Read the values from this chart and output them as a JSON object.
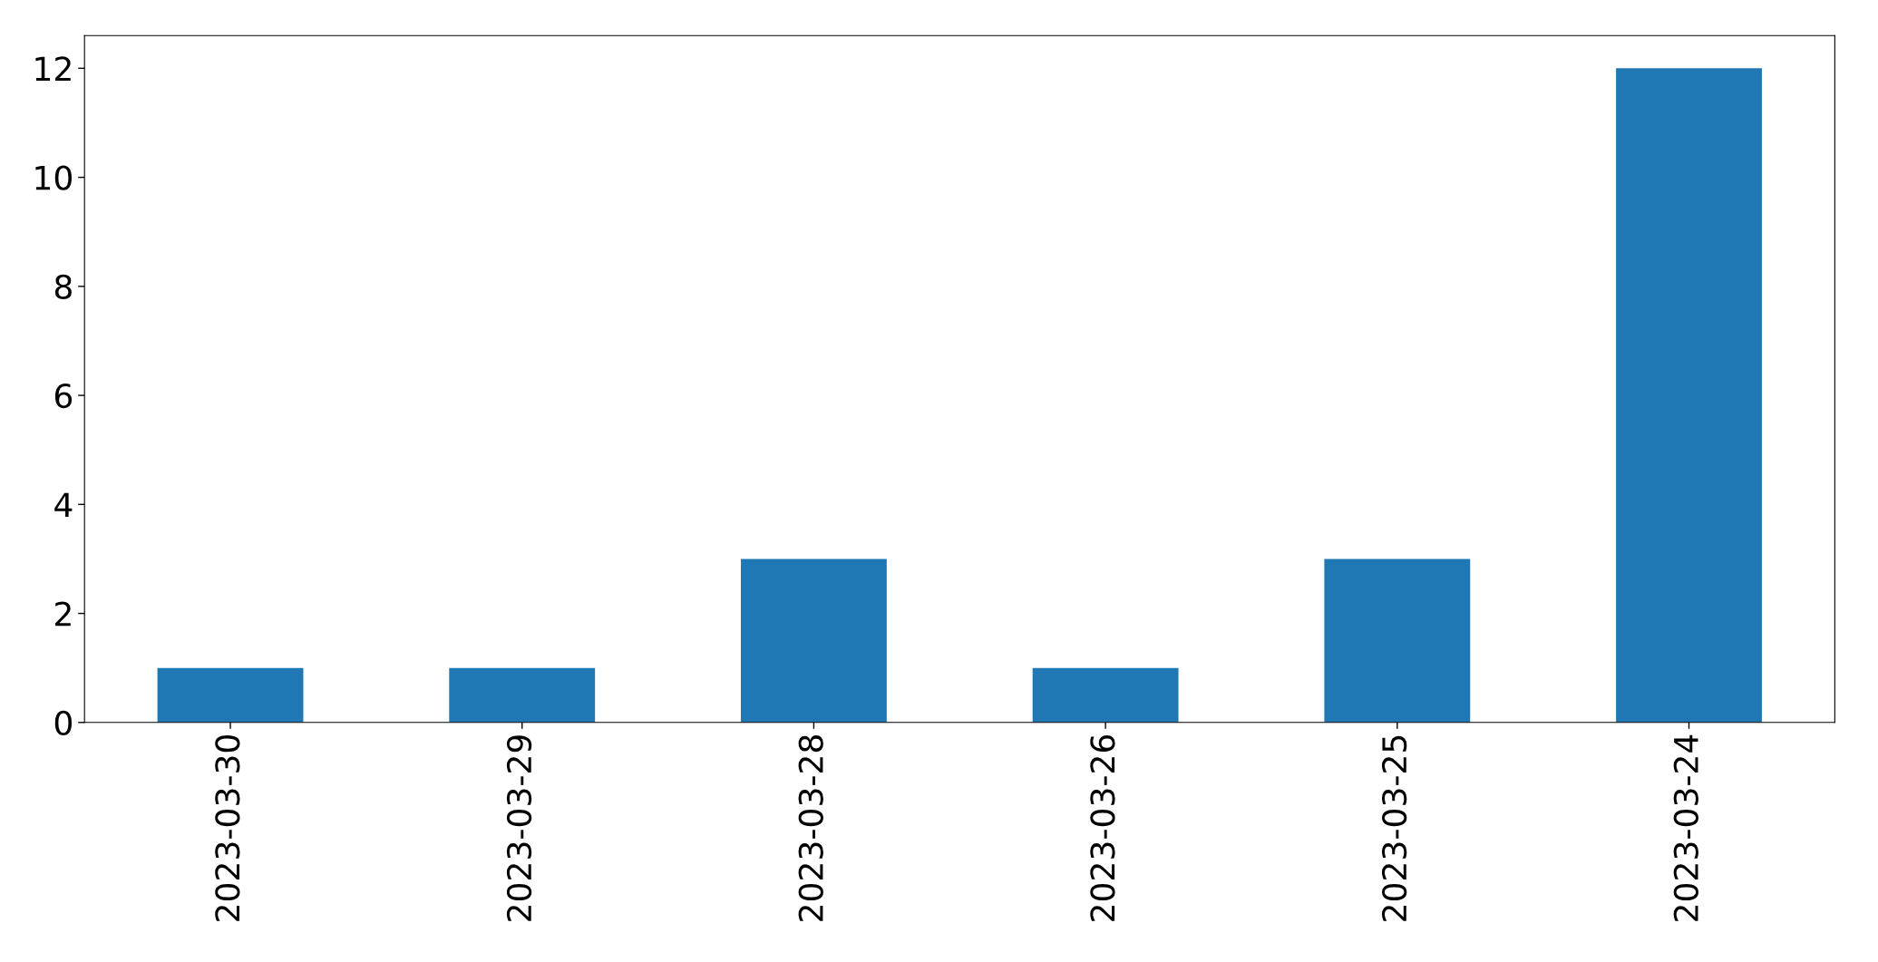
{
  "chart_data": {
    "type": "bar",
    "categories": [
      "2023-03-30",
      "2023-03-29",
      "2023-03-28",
      "2023-03-26",
      "2023-03-25",
      "2023-03-24"
    ],
    "values": [
      1,
      1,
      3,
      1,
      3,
      12
    ],
    "color": "#1f77b4",
    "ylim": [
      0,
      12.6
    ],
    "yticks": [
      0,
      2,
      4,
      6,
      8,
      10,
      12
    ],
    "grid": false,
    "legend": false
  }
}
